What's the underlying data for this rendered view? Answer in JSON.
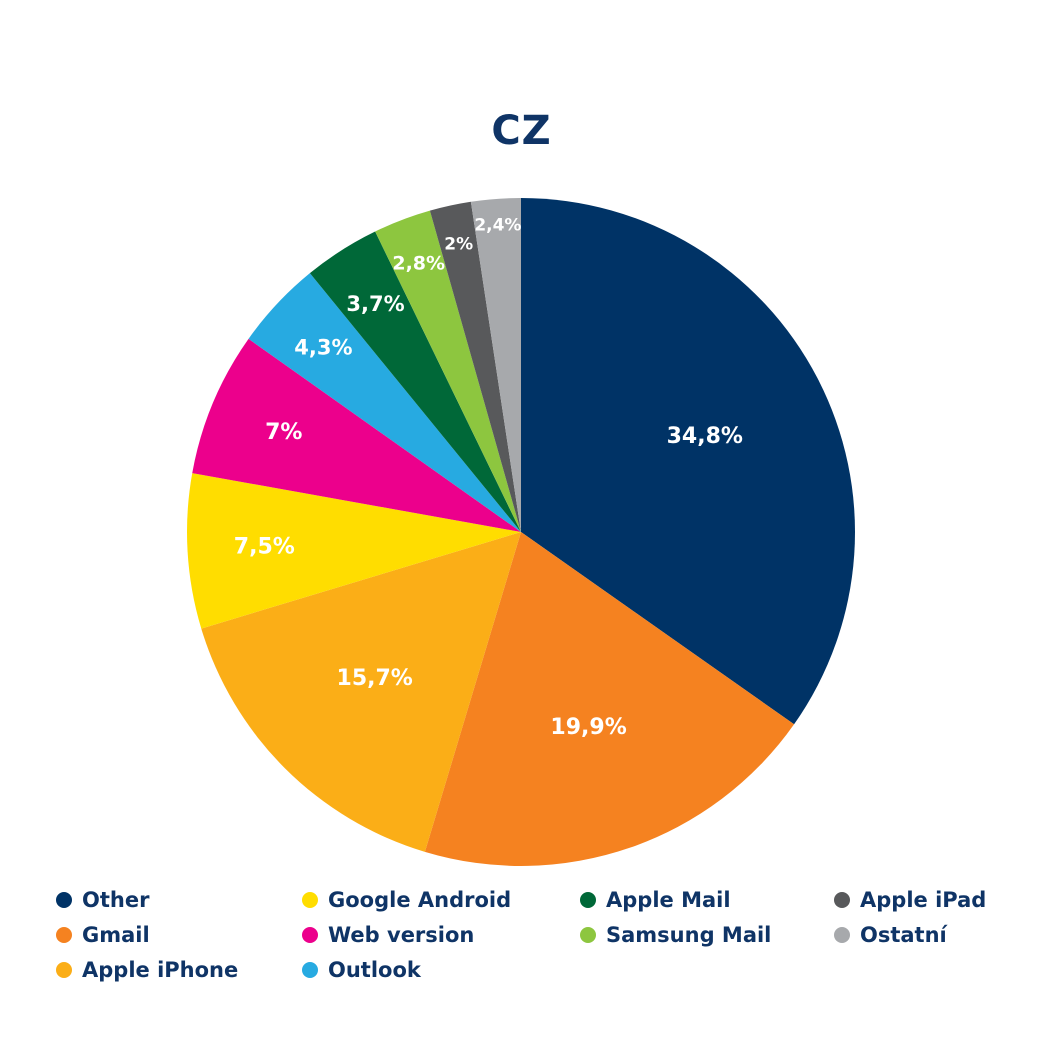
{
  "chart_data": {
    "type": "pie",
    "title": "CZ",
    "slices": [
      {
        "name": "Other",
        "value": 34.8,
        "label": "34,8%",
        "color": "#003366"
      },
      {
        "name": "Gmail",
        "value": 19.9,
        "label": "19,9%",
        "color": "#f58220"
      },
      {
        "name": "Apple iPhone",
        "value": 15.7,
        "label": "15,7%",
        "color": "#fbae17"
      },
      {
        "name": "Google Android",
        "value": 7.5,
        "label": "7,5%",
        "color": "#ffdd00"
      },
      {
        "name": "Web version",
        "value": 7.0,
        "label": "7%",
        "color": "#ec008c"
      },
      {
        "name": "Outlook",
        "value": 4.3,
        "label": "4,3%",
        "color": "#27aae1"
      },
      {
        "name": "Apple Mail",
        "value": 3.7,
        "label": "3,7%",
        "color": "#006838"
      },
      {
        "name": "Samsung Mail",
        "value": 2.8,
        "label": "2,8%",
        "color": "#8dc63f"
      },
      {
        "name": "Apple iPad",
        "value": 2.0,
        "label": "2%",
        "color": "#58595b"
      },
      {
        "name": "Ostatní",
        "value": 2.4,
        "label": "2,4%",
        "color": "#a7a9ac"
      }
    ],
    "legend_position": "bottom",
    "start_angle": "top",
    "direction": "clockwise"
  }
}
